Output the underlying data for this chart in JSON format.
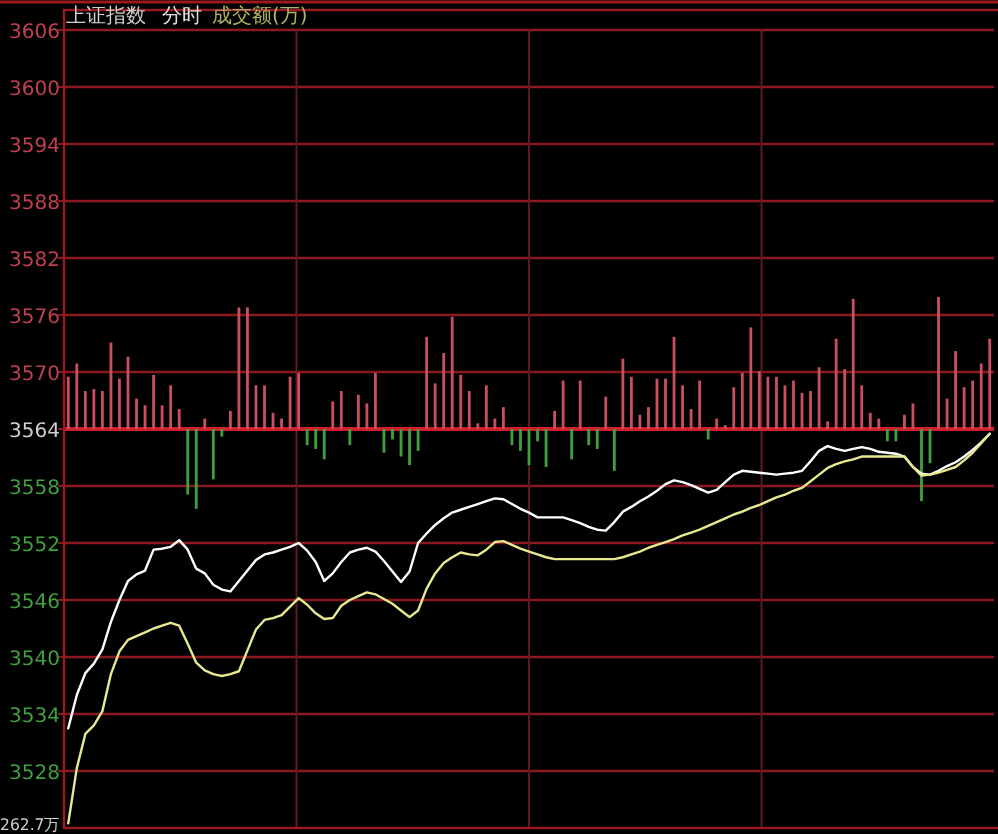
{
  "chart_data": {
    "type": "line",
    "title": "上证指数",
    "subtitle": "分时",
    "annotations": [
      "成交额(万)",
      "262.7万"
    ],
    "categories": [
      null,
      null,
      null,
      null,
      null,
      null,
      null,
      null,
      null,
      null,
      null,
      null,
      null,
      null,
      null,
      null,
      null,
      null,
      null,
      null,
      null,
      null,
      null,
      null,
      null,
      null,
      null,
      null,
      null,
      null,
      null,
      null,
      null,
      null,
      null,
      null,
      null,
      null,
      null,
      null,
      null,
      null,
      null,
      null,
      null,
      null,
      null,
      null,
      null,
      null,
      null,
      null,
      null,
      null,
      null,
      null,
      null,
      null,
      null,
      null,
      null,
      null,
      null,
      null,
      null,
      null,
      null,
      null,
      null,
      null,
      null,
      null,
      null,
      null,
      null,
      null,
      null,
      null,
      null,
      null,
      null,
      null,
      null,
      null,
      null,
      null,
      null,
      null,
      null,
      null,
      null,
      null,
      null,
      null,
      null,
      null,
      null,
      null,
      null,
      null,
      null,
      null,
      null,
      null,
      null,
      null,
      null,
      null,
      null
    ],
    "ylim": [
      3522,
      3606
    ],
    "yticks": [
      3528,
      3534,
      3540,
      3546,
      3552,
      3558,
      3564,
      3570,
      3576,
      3582,
      3588,
      3594,
      3600,
      3606
    ],
    "grid": true,
    "ref_lines": [
      {
        "axis": "y",
        "value": 3564,
        "label": null,
        "color": "#d02030"
      }
    ],
    "series": [
      {
        "type": "bar",
        "values": [
          5.5,
          6.9,
          4.0,
          4.2,
          4.0,
          9.1,
          5.3,
          7.6,
          3.2,
          2.5,
          5.7,
          2.5,
          4.6,
          2.1,
          -6.9,
          -8.4,
          1.1,
          -5.3,
          -0.8,
          1.9,
          12.8,
          12.8,
          4.6,
          4.6,
          1.7,
          1.1,
          5.5,
          5.9,
          -1.7,
          -2.1,
          -3.2,
          2.9,
          4.0,
          -1.7,
          3.6,
          2.7,
          5.9,
          -2.5,
          -1.1,
          -2.9,
          -3.8,
          -2.3,
          9.7,
          4.8,
          8.0,
          11.8,
          5.7,
          4.0,
          0.6,
          4.6,
          1.1,
          2.3,
          -1.7,
          -2.3,
          -3.8,
          -1.3,
          -4.0,
          1.9,
          5.1,
          -3.2,
          5.1,
          -1.7,
          -2.1,
          3.4,
          -4.4,
          7.4,
          5.5,
          1.5,
          2.3,
          5.3,
          5.3,
          9.7,
          4.6,
          2.1,
          5.1,
          -1.1,
          1.1,
          0.4,
          4.4,
          5.9,
          10.7,
          6.1,
          5.5,
          5.5,
          4.6,
          5.1,
          3.8,
          4.0,
          6.5,
          0.8,
          9.5,
          6.3,
          13.7,
          4.6,
          1.7,
          1.1,
          -1.3,
          -1.3,
          1.5,
          2.7,
          -7.6,
          -3.6,
          13.9,
          3.2,
          8.2,
          4.4,
          5.1,
          6.9,
          9.5
        ],
        "base": [
          3564,
          3564,
          3564,
          3564,
          3564,
          3564,
          3564,
          3564,
          3564,
          3564,
          3564,
          3564,
          3564,
          3564,
          3564,
          3564,
          3564,
          3564,
          3564,
          3564,
          3564,
          3564,
          3564,
          3564,
          3564,
          3564,
          3564,
          3564,
          3564,
          3564,
          3564,
          3564,
          3564,
          3564,
          3564,
          3564,
          3564,
          3564,
          3564,
          3564,
          3564,
          3564,
          3564,
          3564,
          3564,
          3564,
          3564,
          3564,
          3564,
          3564,
          3564,
          3564,
          3564,
          3564,
          3564,
          3564,
          3564,
          3564,
          3564,
          3564,
          3564,
          3564,
          3564,
          3564,
          3564,
          3564,
          3564,
          3564,
          3564,
          3564,
          3564,
          3564,
          3564,
          3564,
          3564,
          3564,
          3564,
          3564,
          3564,
          3564,
          3564,
          3564,
          3564,
          3564,
          3564,
          3564,
          3564,
          3564,
          3564,
          3564,
          3564,
          3564,
          3564,
          3564,
          3564,
          3564,
          3564,
          3564,
          3564,
          3564,
          3564,
          3564,
          3564,
          3564,
          3564,
          3564,
          3564,
          3564,
          3564
        ],
        "colors": [
          "#c85060",
          "#c85060",
          "#c85060",
          "#c85060",
          "#c85060",
          "#c85060",
          "#c85060",
          "#c85060",
          "#c85060",
          "#c85060",
          "#c85060",
          "#c85060",
          "#c85060",
          "#c85060",
          "#40a040",
          "#40a040",
          "#c85060",
          "#40a040",
          "#40a040",
          "#c85060",
          "#c85060",
          "#c85060",
          "#c85060",
          "#c85060",
          "#c85060",
          "#c85060",
          "#c85060",
          "#c85060",
          "#40a040",
          "#40a040",
          "#40a040",
          "#c85060",
          "#c85060",
          "#40a040",
          "#c85060",
          "#c85060",
          "#c85060",
          "#40a040",
          "#40a040",
          "#40a040",
          "#40a040",
          "#40a040",
          "#c85060",
          "#c85060",
          "#c85060",
          "#c85060",
          "#c85060",
          "#c85060",
          "#c85060",
          "#c85060",
          "#c85060",
          "#c85060",
          "#40a040",
          "#40a040",
          "#40a040",
          "#40a040",
          "#40a040",
          "#c85060",
          "#c85060",
          "#40a040",
          "#c85060",
          "#40a040",
          "#40a040",
          "#c85060",
          "#40a040",
          "#c85060",
          "#c85060",
          "#c85060",
          "#c85060",
          "#c85060",
          "#c85060",
          "#c85060",
          "#c85060",
          "#c85060",
          "#c85060",
          "#40a040",
          "#c85060",
          "#c85060",
          "#c85060",
          "#c85060",
          "#c85060",
          "#c85060",
          "#c85060",
          "#c85060",
          "#c85060",
          "#c85060",
          "#c85060",
          "#c85060",
          "#c85060",
          "#c85060",
          "#c85060",
          "#c85060",
          "#c85060",
          "#c85060",
          "#c85060",
          "#c85060",
          "#40a040",
          "#40a040",
          "#c85060",
          "#c85060",
          "#40a040",
          "#40a040",
          "#c85060",
          "#c85060",
          "#c85060",
          "#c85060",
          "#c85060",
          "#c85060",
          "#c85060"
        ]
      },
      {
        "color": "#ffffff",
        "values": [
          3532.5,
          3536.0,
          3538.3,
          3539.3,
          3540.8,
          3543.7,
          3546.0,
          3548.0,
          3548.7,
          3549.1,
          3551.3,
          3551.4,
          3551.6,
          3552.3,
          3551.3,
          3549.3,
          3548.8,
          3547.6,
          3547.1,
          3546.9,
          3548.0,
          3549.1,
          3550.2,
          3550.8,
          3551.0,
          3551.3,
          3551.6,
          3552.0,
          3551.2,
          3550.0,
          3548.0,
          3548.8,
          3550.0,
          3551.0,
          3551.3,
          3551.5,
          3551.1,
          3550.1,
          3549.0,
          3547.9,
          3549.0,
          3552.0,
          3553.0,
          3553.9,
          3554.6,
          3555.2,
          3555.5,
          3555.8,
          3556.1,
          3556.4,
          3556.7,
          3556.6,
          3556.1,
          3555.6,
          3555.2,
          3554.7,
          3554.7,
          3554.7,
          3554.7,
          3554.4,
          3554.1,
          3553.7,
          3553.4,
          3553.3,
          3554.2,
          3555.3,
          3555.8,
          3556.4,
          3556.9,
          3557.5,
          3558.2,
          3558.6,
          3558.4,
          3558.1,
          3557.7,
          3557.3,
          3557.6,
          3558.4,
          3559.2,
          3559.6,
          3559.5,
          3559.4,
          3559.3,
          3559.2,
          3559.3,
          3559.4,
          3559.6,
          3560.6,
          3561.7,
          3562.2,
          3561.9,
          3561.7,
          3561.9,
          3562.1,
          3561.9,
          3561.6,
          3561.5,
          3561.4,
          3561.1,
          3560.0,
          3559.3,
          3559.2,
          3559.6,
          3560.1,
          3560.5,
          3561.1,
          3561.8,
          3562.6,
          3563.5
        ]
      },
      {
        "color": "#e8e890",
        "values": [
          3522.5,
          3528.3,
          3531.9,
          3532.8,
          3534.3,
          3538.2,
          3540.6,
          3541.8,
          3542.2,
          3542.6,
          3543.0,
          3543.3,
          3543.6,
          3543.3,
          3541.4,
          3539.4,
          3538.6,
          3538.2,
          3538.0,
          3538.2,
          3538.5,
          3540.7,
          3542.9,
          3543.9,
          3544.1,
          3544.4,
          3545.3,
          3546.2,
          3545.5,
          3544.6,
          3544.0,
          3544.1,
          3545.4,
          3546.0,
          3546.4,
          3546.8,
          3546.6,
          3546.1,
          3545.6,
          3544.9,
          3544.2,
          3544.9,
          3547.2,
          3548.8,
          3549.9,
          3550.5,
          3551.0,
          3550.8,
          3550.7,
          3551.3,
          3552.1,
          3552.2,
          3551.8,
          3551.4,
          3551.1,
          3550.8,
          3550.5,
          3550.3,
          3550.3,
          3550.3,
          3550.3,
          3550.3,
          3550.3,
          3550.3,
          3550.3,
          3550.5,
          3550.8,
          3551.1,
          3551.5,
          3551.8,
          3552.1,
          3552.4,
          3552.8,
          3553.1,
          3553.4,
          3553.8,
          3554.2,
          3554.6,
          3555.0,
          3555.3,
          3555.7,
          3556.0,
          3556.4,
          3556.8,
          3557.1,
          3557.5,
          3557.8,
          3558.5,
          3559.2,
          3559.9,
          3560.3,
          3560.6,
          3560.8,
          3561.1,
          3561.1,
          3561.1,
          3561.1,
          3561.1,
          3561.1,
          3560.0,
          3559.1,
          3559.2,
          3559.4,
          3559.7,
          3560.0,
          3560.7,
          3561.5,
          3562.5,
          3563.5
        ]
      }
    ]
  }
}
